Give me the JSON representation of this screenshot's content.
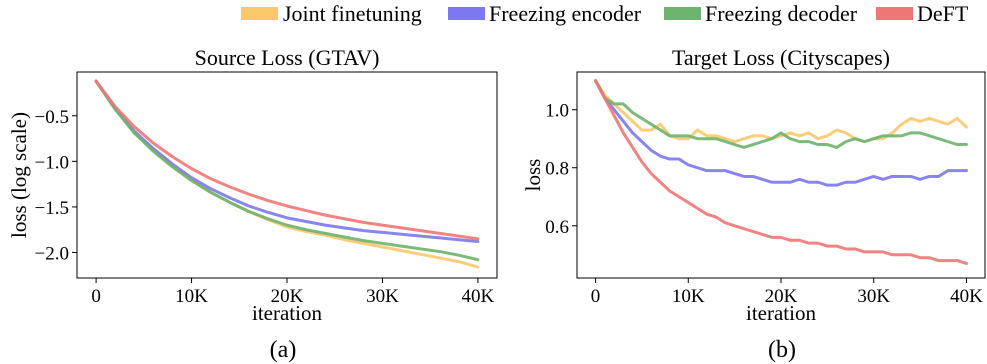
{
  "legend": {
    "entries": [
      {
        "label": "Joint finetuning",
        "color": "#f9c86b"
      },
      {
        "label": "Freezing encoder",
        "color": "#7b78f0"
      },
      {
        "label": "Freezing decoder",
        "color": "#6db36d"
      },
      {
        "label": "DeFT",
        "color": "#f07676"
      }
    ],
    "placement": "top-right"
  },
  "chart_data": [
    {
      "type": "line",
      "title": "Source Loss (GTAV)",
      "xlabel": "iteration",
      "ylabel": "loss (log scale)",
      "caption": "(a)",
      "xlim": [
        -2000,
        42000
      ],
      "ylim": [
        -2.28,
        -0.02
      ],
      "xticks": [
        0,
        10000,
        20000,
        30000,
        40000
      ],
      "xtick_labels": [
        "0",
        "10K",
        "20K",
        "30K",
        "40K"
      ],
      "yticks": [
        -0.5,
        -1.0,
        -1.5,
        -2.0
      ],
      "ytick_labels": [
        "−0.5",
        "−1.0",
        "−1.5",
        "−2.0"
      ],
      "grid": false,
      "series": [
        {
          "name": "Joint finetuning",
          "color": "#f9c86b",
          "x": [
            0,
            2000,
            4000,
            6000,
            8000,
            10000,
            12000,
            14000,
            16000,
            18000,
            20000,
            22000,
            24000,
            26000,
            28000,
            30000,
            32000,
            34000,
            36000,
            38000,
            40000
          ],
          "y": [
            -0.12,
            -0.42,
            -0.68,
            -0.88,
            -1.06,
            -1.21,
            -1.34,
            -1.45,
            -1.55,
            -1.64,
            -1.72,
            -1.77,
            -1.81,
            -1.86,
            -1.9,
            -1.94,
            -1.98,
            -2.02,
            -2.06,
            -2.1,
            -2.16
          ]
        },
        {
          "name": "Freezing encoder",
          "color": "#7b78f0",
          "x": [
            0,
            2000,
            4000,
            6000,
            8000,
            10000,
            12000,
            14000,
            16000,
            18000,
            20000,
            22000,
            24000,
            26000,
            28000,
            30000,
            32000,
            34000,
            36000,
            38000,
            40000
          ],
          "y": [
            -0.12,
            -0.42,
            -0.67,
            -0.86,
            -1.03,
            -1.18,
            -1.3,
            -1.4,
            -1.49,
            -1.56,
            -1.62,
            -1.66,
            -1.7,
            -1.73,
            -1.76,
            -1.78,
            -1.8,
            -1.82,
            -1.84,
            -1.86,
            -1.88
          ]
        },
        {
          "name": "Freezing decoder",
          "color": "#6db36d",
          "x": [
            0,
            2000,
            4000,
            6000,
            8000,
            10000,
            12000,
            14000,
            16000,
            18000,
            20000,
            22000,
            24000,
            26000,
            28000,
            30000,
            32000,
            34000,
            36000,
            38000,
            40000
          ],
          "y": [
            -0.12,
            -0.43,
            -0.69,
            -0.89,
            -1.06,
            -1.21,
            -1.34,
            -1.45,
            -1.55,
            -1.63,
            -1.7,
            -1.75,
            -1.79,
            -1.83,
            -1.87,
            -1.9,
            -1.93,
            -1.96,
            -1.99,
            -2.03,
            -2.08
          ]
        },
        {
          "name": "DeFT",
          "color": "#f07676",
          "x": [
            0,
            2000,
            4000,
            6000,
            8000,
            10000,
            12000,
            14000,
            16000,
            18000,
            20000,
            22000,
            24000,
            26000,
            28000,
            30000,
            32000,
            34000,
            36000,
            38000,
            40000
          ],
          "y": [
            -0.12,
            -0.4,
            -0.62,
            -0.8,
            -0.95,
            -1.08,
            -1.19,
            -1.28,
            -1.36,
            -1.43,
            -1.49,
            -1.54,
            -1.59,
            -1.63,
            -1.67,
            -1.7,
            -1.73,
            -1.76,
            -1.79,
            -1.82,
            -1.85
          ]
        }
      ]
    },
    {
      "type": "line",
      "title": "Target Loss (Cityscapes)",
      "xlabel": "iteration",
      "ylabel": "loss",
      "caption": "(b)",
      "xlim": [
        -2000,
        42000
      ],
      "ylim": [
        0.42,
        1.13
      ],
      "xticks": [
        0,
        10000,
        20000,
        30000,
        40000
      ],
      "xtick_labels": [
        "0",
        "10K",
        "20K",
        "30K",
        "40K"
      ],
      "yticks": [
        0.6,
        0.8,
        1.0
      ],
      "ytick_labels": [
        "0.6",
        "0.8",
        "1.0"
      ],
      "grid": false,
      "series": [
        {
          "name": "Joint finetuning",
          "color": "#f9c86b",
          "x": [
            0,
            1000,
            2000,
            3000,
            4000,
            5000,
            6000,
            7000,
            8000,
            9000,
            10000,
            11000,
            12000,
            13000,
            14000,
            15000,
            16000,
            17000,
            18000,
            19000,
            20000,
            21000,
            22000,
            23000,
            24000,
            25000,
            26000,
            27000,
            28000,
            29000,
            30000,
            31000,
            32000,
            33000,
            34000,
            35000,
            36000,
            37000,
            38000,
            39000,
            40000
          ],
          "y": [
            1.1,
            1.05,
            1.02,
            0.99,
            0.96,
            0.93,
            0.93,
            0.95,
            0.91,
            0.9,
            0.9,
            0.93,
            0.91,
            0.91,
            0.9,
            0.89,
            0.9,
            0.91,
            0.91,
            0.9,
            0.91,
            0.92,
            0.91,
            0.92,
            0.9,
            0.91,
            0.93,
            0.92,
            0.9,
            0.89,
            0.9,
            0.9,
            0.92,
            0.95,
            0.97,
            0.96,
            0.97,
            0.96,
            0.95,
            0.97,
            0.94
          ]
        },
        {
          "name": "Freezing encoder",
          "color": "#7b78f0",
          "x": [
            0,
            1000,
            2000,
            3000,
            4000,
            5000,
            6000,
            7000,
            8000,
            9000,
            10000,
            11000,
            12000,
            13000,
            14000,
            15000,
            16000,
            17000,
            18000,
            19000,
            20000,
            21000,
            22000,
            23000,
            24000,
            25000,
            26000,
            27000,
            28000,
            29000,
            30000,
            31000,
            32000,
            33000,
            34000,
            35000,
            36000,
            37000,
            38000,
            39000,
            40000
          ],
          "y": [
            1.1,
            1.04,
            1.0,
            0.96,
            0.92,
            0.89,
            0.86,
            0.84,
            0.83,
            0.83,
            0.81,
            0.8,
            0.79,
            0.79,
            0.79,
            0.78,
            0.77,
            0.77,
            0.76,
            0.75,
            0.75,
            0.75,
            0.76,
            0.75,
            0.75,
            0.74,
            0.74,
            0.75,
            0.75,
            0.76,
            0.77,
            0.76,
            0.77,
            0.77,
            0.77,
            0.76,
            0.77,
            0.77,
            0.79,
            0.79,
            0.79
          ]
        },
        {
          "name": "Freezing decoder",
          "color": "#6db36d",
          "x": [
            0,
            1000,
            2000,
            3000,
            4000,
            5000,
            6000,
            7000,
            8000,
            9000,
            10000,
            11000,
            12000,
            13000,
            14000,
            15000,
            16000,
            17000,
            18000,
            19000,
            20000,
            21000,
            22000,
            23000,
            24000,
            25000,
            26000,
            27000,
            28000,
            29000,
            30000,
            31000,
            32000,
            33000,
            34000,
            35000,
            36000,
            37000,
            38000,
            39000,
            40000
          ],
          "y": [
            1.1,
            1.04,
            1.02,
            1.02,
            0.99,
            0.97,
            0.95,
            0.93,
            0.91,
            0.91,
            0.91,
            0.9,
            0.9,
            0.9,
            0.89,
            0.88,
            0.87,
            0.88,
            0.89,
            0.9,
            0.92,
            0.9,
            0.89,
            0.89,
            0.88,
            0.88,
            0.87,
            0.89,
            0.9,
            0.89,
            0.9,
            0.91,
            0.91,
            0.91,
            0.92,
            0.92,
            0.91,
            0.9,
            0.89,
            0.88,
            0.88
          ]
        },
        {
          "name": "DeFT",
          "color": "#f07676",
          "x": [
            0,
            1000,
            2000,
            3000,
            4000,
            5000,
            6000,
            7000,
            8000,
            9000,
            10000,
            11000,
            12000,
            13000,
            14000,
            15000,
            16000,
            17000,
            18000,
            19000,
            20000,
            21000,
            22000,
            23000,
            24000,
            25000,
            26000,
            27000,
            28000,
            29000,
            30000,
            31000,
            32000,
            33000,
            34000,
            35000,
            36000,
            37000,
            38000,
            39000,
            40000
          ],
          "y": [
            1.1,
            1.04,
            0.98,
            0.92,
            0.87,
            0.82,
            0.78,
            0.75,
            0.72,
            0.7,
            0.68,
            0.66,
            0.64,
            0.63,
            0.61,
            0.6,
            0.59,
            0.58,
            0.57,
            0.56,
            0.56,
            0.55,
            0.55,
            0.54,
            0.54,
            0.53,
            0.53,
            0.52,
            0.52,
            0.51,
            0.51,
            0.51,
            0.5,
            0.5,
            0.5,
            0.49,
            0.49,
            0.48,
            0.48,
            0.48,
            0.47
          ]
        }
      ]
    }
  ]
}
